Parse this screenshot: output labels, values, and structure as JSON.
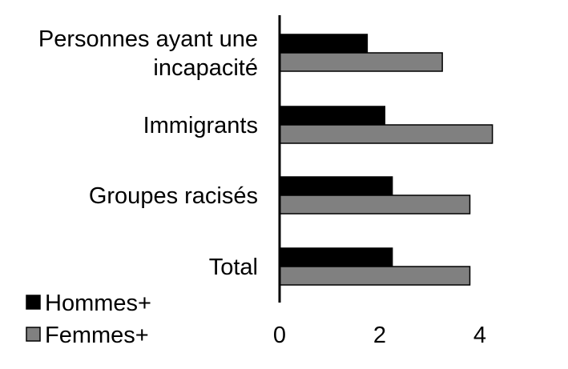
{
  "chart_data": {
    "type": "bar",
    "orientation": "horizontal",
    "title": "",
    "xlabel": "",
    "ylabel": "",
    "categories": [
      [
        "Personnes ayant une",
        "incapacité"
      ],
      [
        "Immigrants"
      ],
      [
        "Groupes racisés"
      ],
      [
        "Total"
      ]
    ],
    "series": [
      {
        "name": "Hommes+",
        "color": "#000000",
        "values": [
          1.75,
          2.1,
          2.25,
          2.25
        ]
      },
      {
        "name": "Femmes+",
        "color": "#808080",
        "values": [
          3.25,
          4.25,
          3.8,
          3.8
        ]
      }
    ],
    "xlim": [
      0,
      4.5
    ],
    "xticks": [
      0,
      2,
      4
    ],
    "grid": false,
    "legend_position": "bottom-left"
  }
}
